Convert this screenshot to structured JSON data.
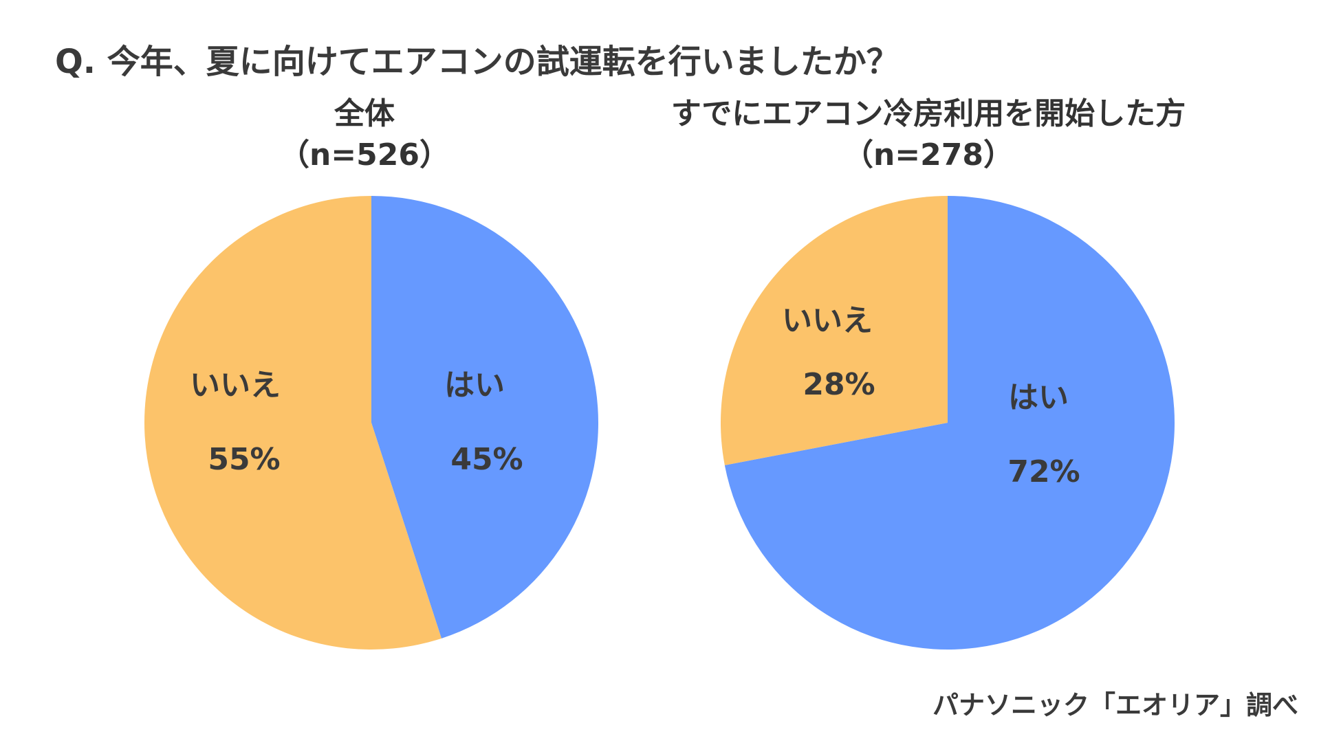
{
  "question": "Q. 今年、夏に向けてエアコンの試運転を行いましたか？",
  "source": "パナソニック「エオリア」調べ",
  "colors": {
    "yes": "#6699ff",
    "no": "#fcc36a"
  },
  "chart_data": [
    {
      "type": "pie",
      "title": "全体",
      "subtitle": "（n=526）",
      "slices": [
        {
          "label": "はい",
          "value": 45,
          "value_label": "45%",
          "color_key": "yes"
        },
        {
          "label": "いいえ",
          "value": 55,
          "value_label": "55%",
          "color_key": "no"
        }
      ]
    },
    {
      "type": "pie",
      "title": "すでにエアコン冷房利用を開始した方",
      "subtitle": "（n=278）",
      "slices": [
        {
          "label": "はい",
          "value": 72,
          "value_label": "72%",
          "color_key": "yes"
        },
        {
          "label": "いいえ",
          "value": 28,
          "value_label": "28%",
          "color_key": "no"
        }
      ]
    }
  ]
}
